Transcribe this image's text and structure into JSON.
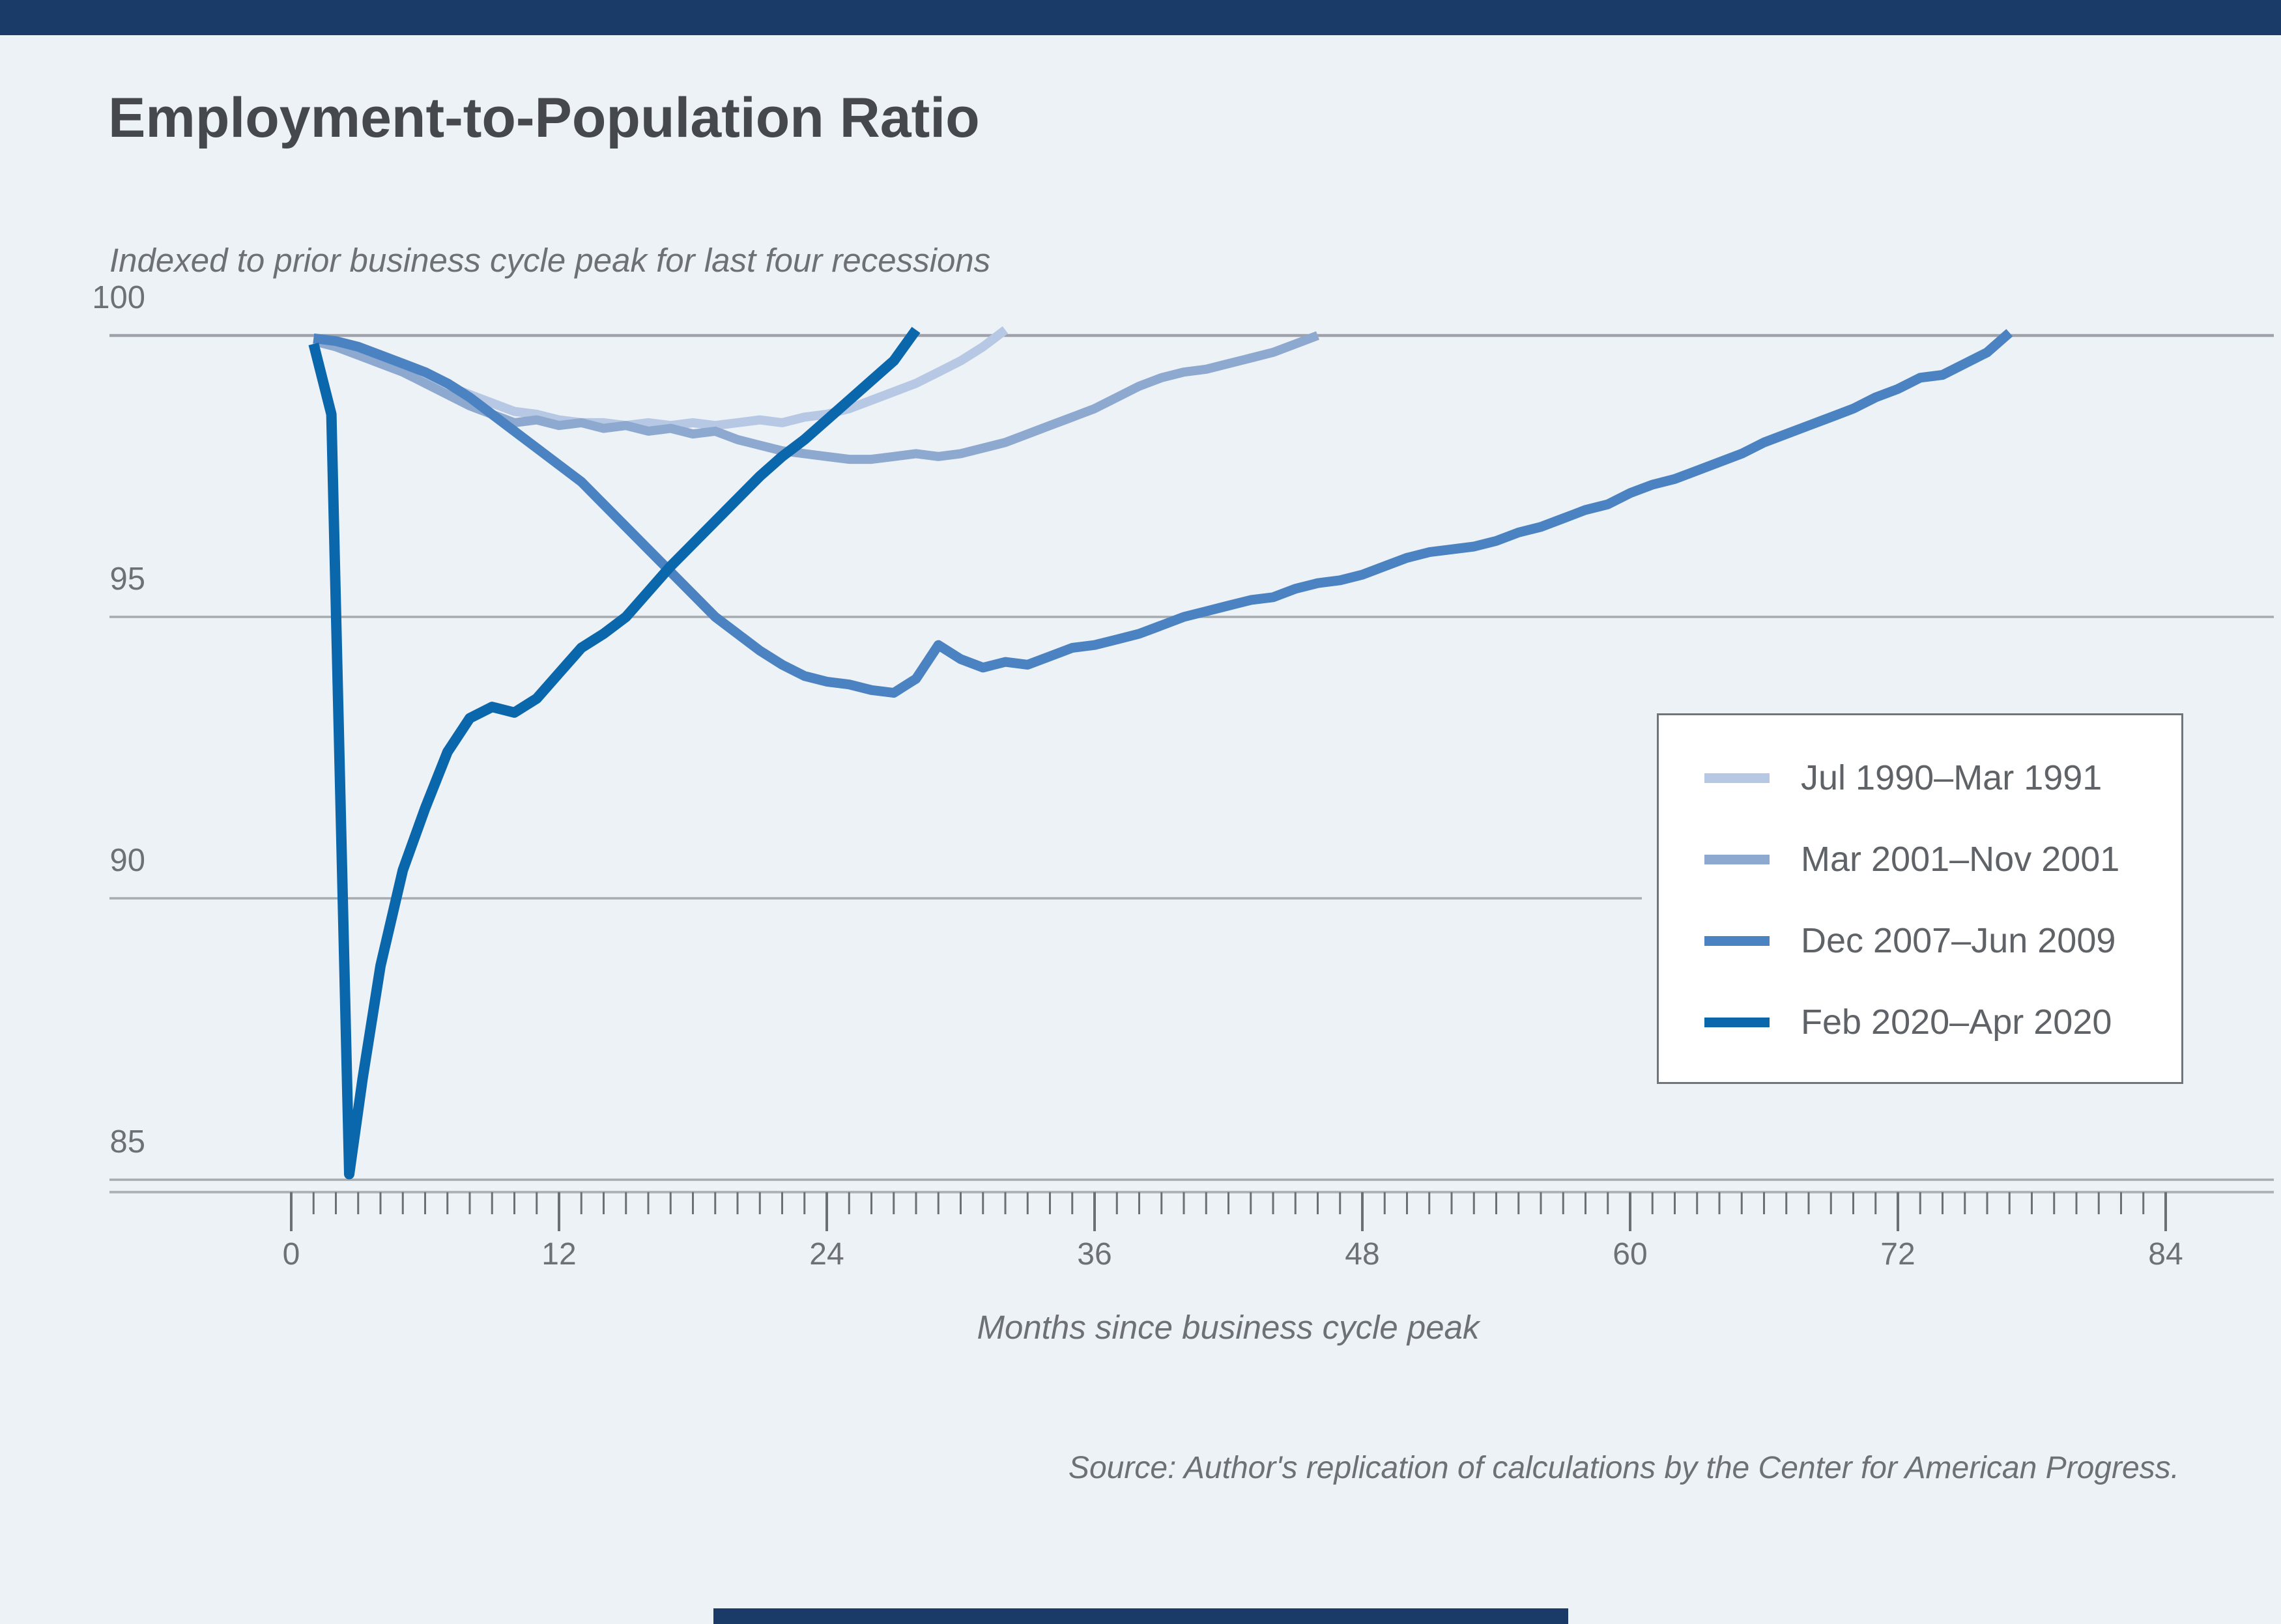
{
  "page": {
    "background": "#edf2f7",
    "top_banner_color": "#1a3a68",
    "bottom_banner_color": "#1a3a68"
  },
  "header": {
    "title": "Employment-to-Population Ratio",
    "subtitle": "Indexed to prior business cycle peak for last four recessions"
  },
  "footer": {
    "source": "Source: Author's replication of calculations by the Center for American Progress."
  },
  "chart_data": {
    "type": "line",
    "title": "Employment-to-Population Ratio",
    "subtitle": "Indexed to prior business cycle peak for last four recessions",
    "xlabel": "Months since business cycle peak",
    "ylabel": "",
    "xlim": [
      0,
      84
    ],
    "ylim": [
      85,
      100
    ],
    "x_major_ticks": [
      0,
      12,
      24,
      36,
      48,
      60,
      72,
      84
    ],
    "x_tick_labels": [
      "0",
      "12",
      "24",
      "36",
      "48",
      "60",
      "72",
      "84"
    ],
    "x_minor_tick_interval": 1,
    "y_gridlines": [
      100,
      95,
      90,
      85
    ],
    "y_tick_labels": [
      "100",
      "95",
      "90",
      "85"
    ],
    "grid": "horizontal-only",
    "legend_position": "right-center-box",
    "colors": {
      "gridline": "#a7abb0",
      "axis_line": "#b0b4b9",
      "tick": "#6b7075",
      "text": "#6d7175"
    },
    "series": [
      {
        "name": "Jul 1990–Mar 1991",
        "color": "#b7c8e4",
        "width": 14,
        "points": [
          [
            1,
            99.9
          ],
          [
            2,
            99.85
          ],
          [
            3,
            99.75
          ],
          [
            4,
            99.6
          ],
          [
            5,
            99.45
          ],
          [
            6,
            99.3
          ],
          [
            7,
            99.1
          ],
          [
            8,
            98.95
          ],
          [
            9,
            98.8
          ],
          [
            10,
            98.65
          ],
          [
            11,
            98.6
          ],
          [
            12,
            98.5
          ],
          [
            13,
            98.45
          ],
          [
            14,
            98.45
          ],
          [
            15,
            98.4
          ],
          [
            16,
            98.45
          ],
          [
            17,
            98.4
          ],
          [
            18,
            98.45
          ],
          [
            19,
            98.4
          ],
          [
            20,
            98.45
          ],
          [
            21,
            98.5
          ],
          [
            22,
            98.45
          ],
          [
            23,
            98.55
          ],
          [
            24,
            98.6
          ],
          [
            25,
            98.7
          ],
          [
            26,
            98.85
          ],
          [
            27,
            99.0
          ],
          [
            28,
            99.15
          ],
          [
            29,
            99.35
          ],
          [
            30,
            99.55
          ],
          [
            31,
            99.8
          ],
          [
            32,
            100.1
          ]
        ]
      },
      {
        "name": "Mar 2001–Nov 2001",
        "color": "#8ea9d0",
        "width": 14,
        "points": [
          [
            1,
            99.9
          ],
          [
            2,
            99.8
          ],
          [
            3,
            99.65
          ],
          [
            4,
            99.5
          ],
          [
            5,
            99.35
          ],
          [
            6,
            99.15
          ],
          [
            7,
            98.95
          ],
          [
            8,
            98.75
          ],
          [
            9,
            98.6
          ],
          [
            10,
            98.45
          ],
          [
            11,
            98.5
          ],
          [
            12,
            98.4
          ],
          [
            13,
            98.45
          ],
          [
            14,
            98.35
          ],
          [
            15,
            98.4
          ],
          [
            16,
            98.3
          ],
          [
            17,
            98.35
          ],
          [
            18,
            98.25
          ],
          [
            19,
            98.3
          ],
          [
            20,
            98.15
          ],
          [
            21,
            98.05
          ],
          [
            22,
            97.95
          ],
          [
            23,
            97.9
          ],
          [
            24,
            97.85
          ],
          [
            25,
            97.8
          ],
          [
            26,
            97.8
          ],
          [
            27,
            97.85
          ],
          [
            28,
            97.9
          ],
          [
            29,
            97.85
          ],
          [
            30,
            97.9
          ],
          [
            31,
            98.0
          ],
          [
            32,
            98.1
          ],
          [
            33,
            98.25
          ],
          [
            34,
            98.4
          ],
          [
            35,
            98.55
          ],
          [
            36,
            98.7
          ],
          [
            37,
            98.9
          ],
          [
            38,
            99.1
          ],
          [
            39,
            99.25
          ],
          [
            40,
            99.35
          ],
          [
            41,
            99.4
          ],
          [
            42,
            99.5
          ],
          [
            43,
            99.6
          ],
          [
            44,
            99.7
          ],
          [
            45,
            99.85
          ],
          [
            46,
            100.0
          ]
        ]
      },
      {
        "name": "Dec 2007–Jun 2009",
        "color": "#4a82c2",
        "width": 15,
        "points": [
          [
            1,
            99.95
          ],
          [
            2,
            99.9
          ],
          [
            3,
            99.8
          ],
          [
            4,
            99.65
          ],
          [
            5,
            99.5
          ],
          [
            6,
            99.35
          ],
          [
            7,
            99.15
          ],
          [
            8,
            98.9
          ],
          [
            9,
            98.6
          ],
          [
            10,
            98.3
          ],
          [
            11,
            98.0
          ],
          [
            12,
            97.7
          ],
          [
            13,
            97.4
          ],
          [
            14,
            97.0
          ],
          [
            15,
            96.6
          ],
          [
            16,
            96.2
          ],
          [
            17,
            95.8
          ],
          [
            18,
            95.4
          ],
          [
            19,
            95.0
          ],
          [
            20,
            94.7
          ],
          [
            21,
            94.4
          ],
          [
            22,
            94.15
          ],
          [
            23,
            93.95
          ],
          [
            24,
            93.85
          ],
          [
            25,
            93.8
          ],
          [
            26,
            93.7
          ],
          [
            27,
            93.65
          ],
          [
            28,
            93.9
          ],
          [
            29,
            94.5
          ],
          [
            30,
            94.25
          ],
          [
            31,
            94.1
          ],
          [
            32,
            94.2
          ],
          [
            33,
            94.15
          ],
          [
            34,
            94.3
          ],
          [
            35,
            94.45
          ],
          [
            36,
            94.5
          ],
          [
            37,
            94.6
          ],
          [
            38,
            94.7
          ],
          [
            39,
            94.85
          ],
          [
            40,
            95.0
          ],
          [
            41,
            95.1
          ],
          [
            42,
            95.2
          ],
          [
            43,
            95.3
          ],
          [
            44,
            95.35
          ],
          [
            45,
            95.5
          ],
          [
            46,
            95.6
          ],
          [
            47,
            95.65
          ],
          [
            48,
            95.75
          ],
          [
            49,
            95.9
          ],
          [
            50,
            96.05
          ],
          [
            51,
            96.15
          ],
          [
            52,
            96.2
          ],
          [
            53,
            96.25
          ],
          [
            54,
            96.35
          ],
          [
            55,
            96.5
          ],
          [
            56,
            96.6
          ],
          [
            57,
            96.75
          ],
          [
            58,
            96.9
          ],
          [
            59,
            97.0
          ],
          [
            60,
            97.2
          ],
          [
            61,
            97.35
          ],
          [
            62,
            97.45
          ],
          [
            63,
            97.6
          ],
          [
            64,
            97.75
          ],
          [
            65,
            97.9
          ],
          [
            66,
            98.1
          ],
          [
            67,
            98.25
          ],
          [
            68,
            98.4
          ],
          [
            69,
            98.55
          ],
          [
            70,
            98.7
          ],
          [
            71,
            98.9
          ],
          [
            72,
            99.05
          ],
          [
            73,
            99.25
          ],
          [
            74,
            99.3
          ],
          [
            75,
            99.5
          ],
          [
            76,
            99.7
          ],
          [
            77,
            100.05
          ]
        ]
      },
      {
        "name": "Feb 2020–Apr 2020",
        "color": "#0b67ab",
        "width": 16,
        "points": [
          [
            1,
            99.85
          ],
          [
            1.8,
            98.6
          ],
          [
            2.6,
            85.1
          ],
          [
            3.2,
            86.8
          ],
          [
            4,
            88.8
          ],
          [
            5,
            90.5
          ],
          [
            6,
            91.6
          ],
          [
            7,
            92.6
          ],
          [
            8,
            93.2
          ],
          [
            9,
            93.4
          ],
          [
            10,
            93.3
          ],
          [
            11,
            93.55
          ],
          [
            12,
            94.0
          ],
          [
            13,
            94.45
          ],
          [
            14,
            94.7
          ],
          [
            15,
            95.0
          ],
          [
            16,
            95.45
          ],
          [
            17,
            95.9
          ],
          [
            18,
            96.3
          ],
          [
            19,
            96.7
          ],
          [
            20,
            97.1
          ],
          [
            21,
            97.5
          ],
          [
            22,
            97.85
          ],
          [
            23,
            98.15
          ],
          [
            24,
            98.5
          ],
          [
            25,
            98.85
          ],
          [
            26,
            99.2
          ],
          [
            27,
            99.55
          ],
          [
            28,
            100.1
          ]
        ]
      }
    ]
  }
}
